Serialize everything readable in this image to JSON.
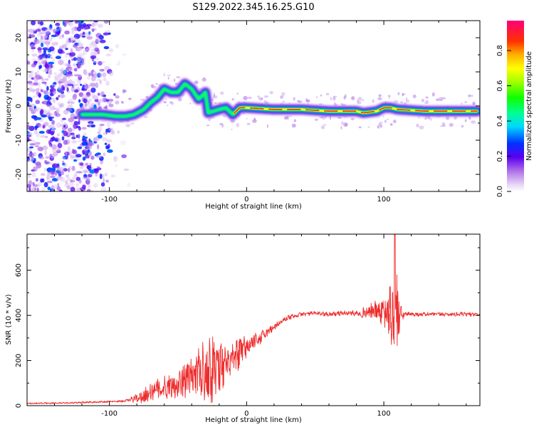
{
  "title": "S129.2022.345.16.25.G10",
  "colors": {
    "snr_line": "#ee2b2b",
    "axis": "#000000",
    "background": "#ffffff"
  },
  "chart_data": [
    {
      "type": "heatmap",
      "name": "spectrogram",
      "xlabel": "Height of straight line (km)",
      "ylabel": "Frequency (Hz)",
      "xlim": [
        -160,
        170
      ],
      "ylim": [
        -25,
        25
      ],
      "xticks": [
        -100,
        0,
        100
      ],
      "xtick_labels": [
        "-100",
        "0",
        "100"
      ],
      "yticks": [
        -20,
        -10,
        0,
        10,
        20
      ],
      "ytick_labels": [
        "-20",
        "-10",
        "0",
        "10",
        "20"
      ],
      "colorbar": {
        "label": "Normalized spectral amplitude",
        "range": [
          0.0,
          0.97
        ],
        "ticks": [
          0.0,
          0.2,
          0.4,
          0.6,
          0.8
        ],
        "tick_labels": [
          "0.0",
          "0.2",
          "0.4",
          "0.6",
          "0.8"
        ],
        "colormap": "gist_rainbow_r (transparent low end)"
      },
      "ridge": {
        "description": "dominant frequency ridge vs height",
        "x": [
          -120,
          -105,
          -95,
          -88,
          -82,
          -75,
          -70,
          -65,
          -60,
          -55,
          -50,
          -45,
          -40,
          -35,
          -30,
          -28,
          -20,
          -15,
          -10,
          -5,
          0,
          20,
          40,
          60,
          80,
          85,
          95,
          100,
          105,
          110,
          130,
          150,
          168
        ],
        "y": [
          -2.5,
          -2.5,
          -3,
          -3,
          -2.5,
          -1,
          1,
          2.5,
          5,
          4,
          4,
          6.5,
          5,
          2,
          4,
          -2,
          -1,
          -0.5,
          -2.5,
          -0.5,
          -0.5,
          -1,
          -1,
          -1.5,
          -1.5,
          -2,
          -1.5,
          -0.5,
          -0.5,
          -1,
          -1.5,
          -1.5,
          -1.5
        ],
        "peak_amplitude": 0.97
      },
      "noise_region": {
        "x": [
          -160,
          -85
        ],
        "y": [
          -25,
          25
        ],
        "amplitude": "0.1-0.5"
      }
    },
    {
      "type": "line",
      "name": "snr",
      "xlabel": "Height of straight line (km)",
      "ylabel": "SNR (10 * v/v)",
      "xlim": [
        -160,
        170
      ],
      "ylim": [
        0,
        760
      ],
      "xticks": [
        -100,
        0,
        100
      ],
      "xtick_labels": [
        "-100",
        "0",
        "100"
      ],
      "yticks": [
        0,
        200,
        400,
        600
      ],
      "ytick_labels": [
        "0",
        "200",
        "400",
        "600"
      ],
      "series": [
        {
          "envelope_x": [
            -160,
            -130,
            -100,
            -90,
            -85,
            -80,
            -75,
            -70,
            -60,
            -50,
            -40,
            -30,
            -25,
            -20,
            -15,
            -10,
            -5,
            0,
            10,
            20,
            30,
            40,
            50,
            60,
            70,
            80,
            90,
            95,
            100,
            105,
            108,
            110,
            112,
            115,
            120,
            140,
            160,
            170
          ],
          "envelope_y": [
            10,
            12,
            18,
            20,
            25,
            35,
            45,
            60,
            80,
            100,
            130,
            160,
            170,
            190,
            180,
            200,
            230,
            260,
            300,
            350,
            390,
            405,
            410,
            405,
            410,
            410,
            415,
            420,
            410,
            405,
            400,
            400,
            400,
            405,
            405,
            405,
            405,
            405
          ],
          "noise_amplitude": [
            3,
            3,
            4,
            5,
            8,
            20,
            30,
            40,
            45,
            60,
            80,
            120,
            150,
            120,
            60,
            60,
            70,
            40,
            25,
            15,
            10,
            8,
            8,
            8,
            10,
            10,
            30,
            40,
            50,
            120,
            300,
            200,
            40,
            10,
            8,
            8,
            8,
            8
          ],
          "peak": {
            "x": 108,
            "y": 760
          }
        }
      ]
    }
  ]
}
